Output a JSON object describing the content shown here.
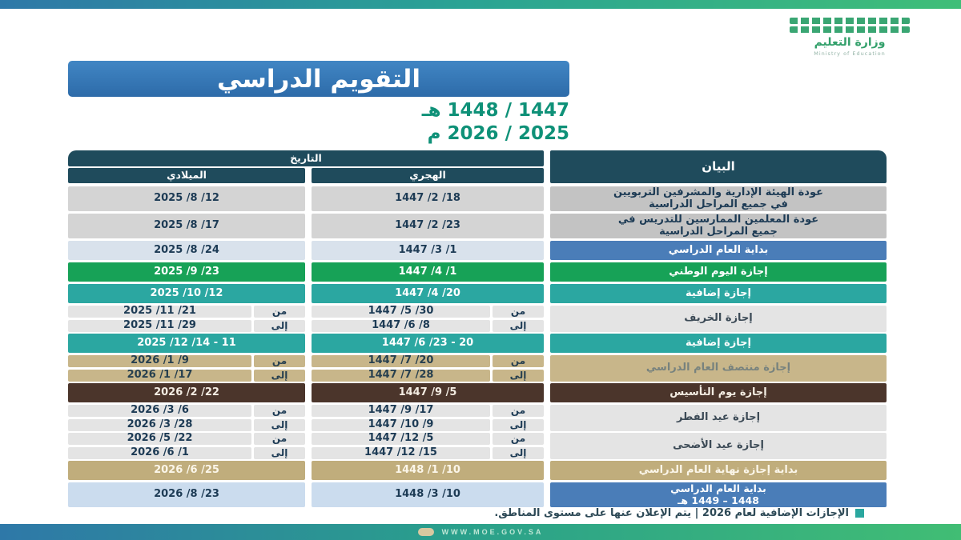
{
  "brand": {
    "logo_title": "وزارة التعليم",
    "logo_subtitle": "Ministry of Education",
    "website": "WWW.MOE.GOV.SA"
  },
  "header": {
    "title": "التقويم الدراسي",
    "year_hijri": "1447 / 1448 هـ",
    "year_gregorian": "2025 / 2026 م"
  },
  "table": {
    "date_group_header": "التاريخ",
    "columns": {
      "bayan": "البيان",
      "hijri": "الهجري",
      "miladi": "الميلادي"
    },
    "from_label": "من",
    "to_label": "إلى",
    "rows": [
      {
        "style": "gray-dark",
        "tall": true,
        "bayan": "عودة الهيئة الإدارية والمشرفين التربويين",
        "bayan_line2": "في جميع المراحل الدراسية",
        "hijri": "18/ 2/ 1447",
        "miladi": "12/ 8/ 2025"
      },
      {
        "style": "gray-dark",
        "tall": true,
        "bayan": "عودة المعلمين الممارسين للتدريس في",
        "bayan_line2": "جميع المراحل الدراسية",
        "hijri": "23/ 2/ 1447",
        "miladi": "17/ 8/ 2025"
      },
      {
        "style": "blue",
        "bayan": "بداية العام الدراسي",
        "hijri": "1/ 3/ 1447",
        "miladi": "24/ 8/ 2025"
      },
      {
        "style": "green",
        "bayan": "إجازة اليوم الوطني",
        "hijri": "1/ 4/ 1447",
        "miladi": "23/ 9/ 2025"
      },
      {
        "style": "teal",
        "bayan": "إجازة إضافية",
        "hijri": "20/ 4/ 1447",
        "miladi": "12/ 10/ 2025"
      },
      {
        "style": "gray-light",
        "range": true,
        "bayan": "إجازة الخريف",
        "hijri_from": "30/ 5/ 1447",
        "hijri_to": "8/ 6/ 1447",
        "miladi_from": "21/ 11/ 2025",
        "miladi_to": "29/ 11/ 2025"
      },
      {
        "style": "teal",
        "bayan": "إجازة إضافية",
        "hijri": "20 - 23/ 6/ 1447",
        "miladi": "11 - 14/ 12/ 2025"
      },
      {
        "style": "tan",
        "range": true,
        "bayan": "إجازة منتصف العام الدراسي",
        "hijri_from": "20/ 7/ 1447",
        "hijri_to": "28/ 7/ 1447",
        "miladi_from": "9/ 1/ 2026",
        "miladi_to": "17/ 1/ 2026"
      },
      {
        "style": "brown",
        "bayan": "إجازة يوم التأسيس",
        "hijri": "5/ 9/ 1447",
        "miladi": "22/ 2/ 2026"
      },
      {
        "style": "gray-light",
        "range": true,
        "bayan": "إجازة عيد الفطر",
        "hijri_from": "17/ 9/ 1447",
        "hijri_to": "9/ 10/ 1447",
        "miladi_from": "6/ 3/ 2026",
        "miladi_to": "28/ 3/ 2026"
      },
      {
        "style": "gray-light",
        "range": true,
        "bayan": "إجازة عيد الأضحى",
        "hijri_from": "5/ 12/ 1447",
        "hijri_to": "15/ 12/ 1447",
        "miladi_from": "22/ 5/ 2026",
        "miladi_to": "1/ 6/ 2026"
      },
      {
        "style": "tan-solid",
        "bayan": "بداية إجازة نهاية العام الدراسي",
        "hijri": "10/ 1/ 1448",
        "miladi": "25/ 6/ 2026"
      },
      {
        "style": "blue2",
        "tall": true,
        "bayan": "بداية العام الدراسي",
        "bayan_line2": "1448 – 1449 هـ",
        "hijri": "10/ 3/ 1448",
        "miladi": "23/ 8/ 2026"
      }
    ]
  },
  "footnote": {
    "text": "الإجازات الإضافية لعام 2026 | يتم الإعلان عنها على مستوى المناطق."
  },
  "colors": {
    "header_teal": "#1f4b5c",
    "accent_blue": "#4a7db8",
    "accent_green": "#17a257",
    "accent_teal": "#2ba7a1",
    "accent_tan": "#c8b68a",
    "accent_brown": "#4b352b",
    "year_text": "#0f9178"
  }
}
